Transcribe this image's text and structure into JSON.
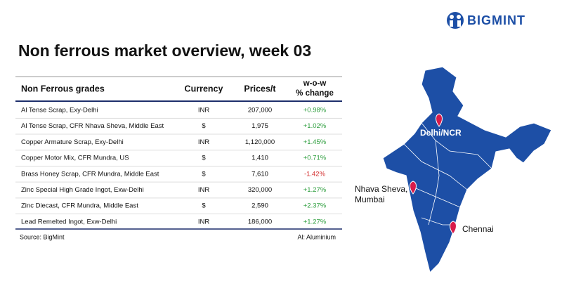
{
  "header": {
    "brand": "BIGMINT",
    "title": "Non ferrous market overview, week 03"
  },
  "table": {
    "columns": [
      "Non Ferrous grades",
      "Currency",
      "Prices/t",
      [
        "w-o-w",
        "% change"
      ]
    ],
    "rows": [
      [
        "Al Tense Scrap, Exy-Delhi",
        "INR",
        "207,000",
        "+0.98%"
      ],
      [
        "Al Tense Scrap, CFR Nhava Sheva, Middle East",
        "$",
        "1,975",
        "+1.02%"
      ],
      [
        "Copper Armature Scrap, Exy-Delhi",
        "INR",
        "1,120,000",
        "+1.45%"
      ],
      [
        "Copper Motor Mix, CFR Mundra, US",
        "$",
        "1,410",
        "+0.71%"
      ],
      [
        "Brass Honey Scrap, CFR Mundra, Middle East",
        "$",
        "7,610",
        "-1.42%"
      ],
      [
        "Zinc Special High Grade Ingot, Exw-Delhi",
        "INR",
        "320,000",
        "+1.27%"
      ],
      [
        "Zinc Diecast, CFR Mundra, Middle East",
        "$",
        "2,590",
        "+2.37%"
      ],
      [
        "Lead Remelted Ingot, Exw-Delhi",
        "INR",
        "186,000",
        "+1.27%"
      ]
    ]
  },
  "footer": {
    "source": "Source: BigMint",
    "note": "Al: Aluminium"
  },
  "map": {
    "labels": [
      [
        "Delhi/NCR"
      ],
      [
        "Nhava Sheva,",
        "Mumbai"
      ],
      [
        "Chennai"
      ]
    ]
  }
}
